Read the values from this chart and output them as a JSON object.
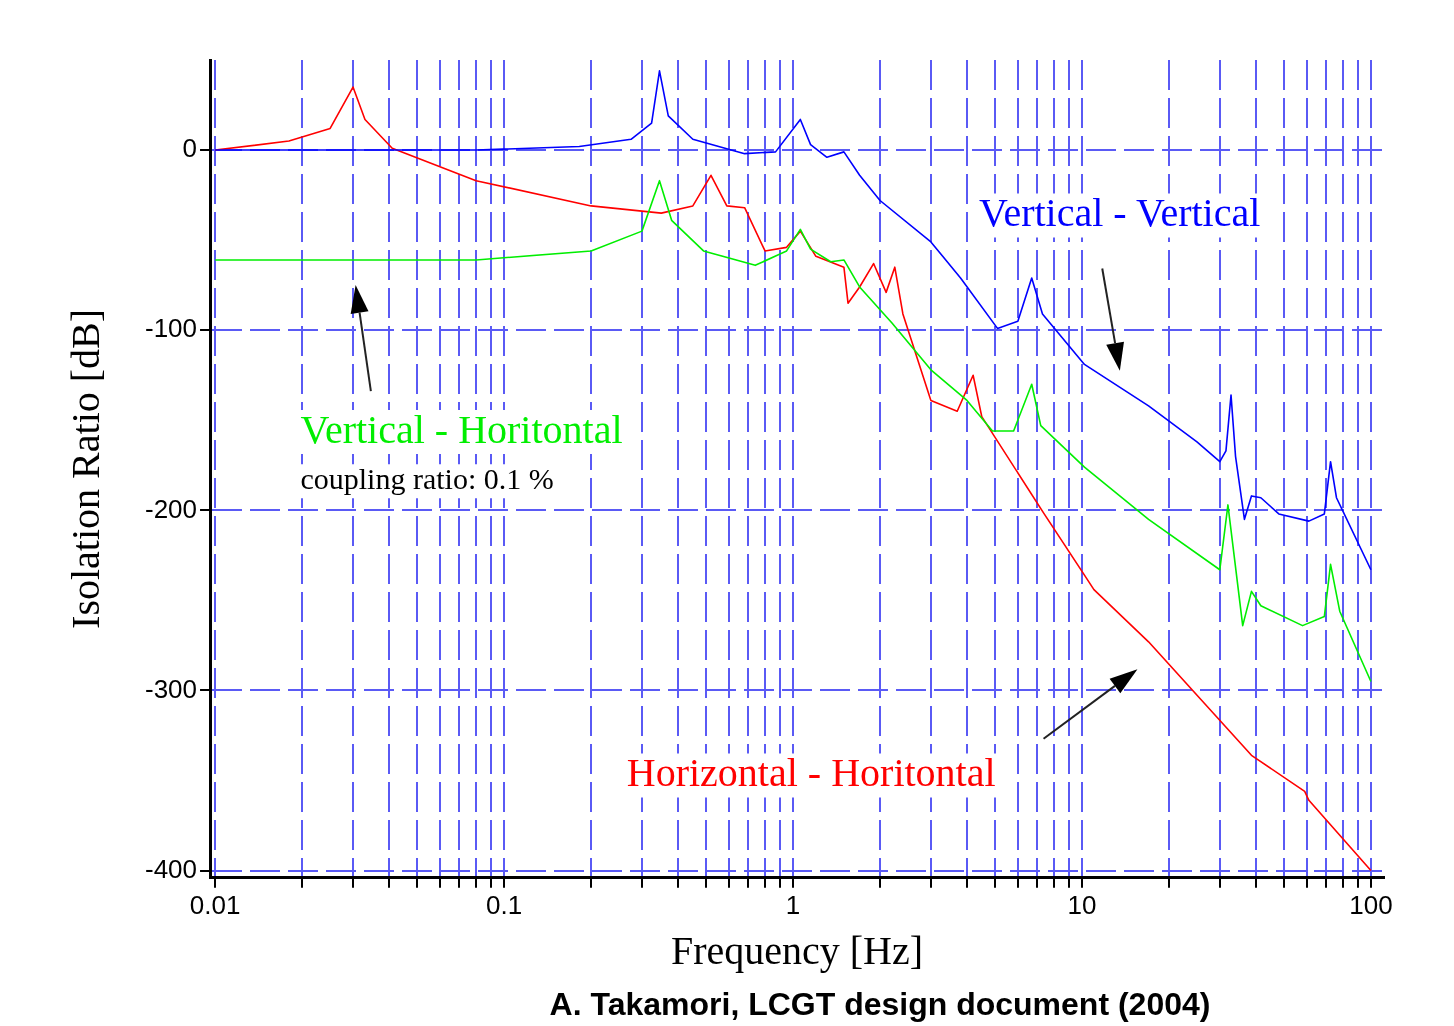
{
  "chart_data": {
    "type": "line",
    "xlabel": "Frequency [Hz]",
    "ylabel": "Isolation Ratio [dB]",
    "log": "x",
    "grid": true,
    "legend": false,
    "marker": "none",
    "line_style": "solid",
    "xlim": [
      0.0096,
      111
    ],
    "ylim": [
      -404,
      50
    ],
    "xticks": [
      0.01,
      {
        "value": 0.02,
        "label": null
      },
      {
        "value": 0.03,
        "label": null
      },
      {
        "value": 0.04,
        "label": null
      },
      {
        "value": 0.05,
        "label": null
      },
      {
        "value": 0.06,
        "label": null
      },
      {
        "value": 0.07,
        "label": null
      },
      {
        "value": 0.08,
        "label": null
      },
      {
        "value": 0.09,
        "label": null
      },
      0.1,
      {
        "value": 0.2,
        "label": null
      },
      {
        "value": 0.3,
        "label": null
      },
      {
        "value": 0.4,
        "label": null
      },
      {
        "value": 0.5,
        "label": null
      },
      {
        "value": 0.6,
        "label": null
      },
      {
        "value": 0.7,
        "label": null
      },
      {
        "value": 0.8,
        "label": null
      },
      {
        "value": 0.9,
        "label": null
      },
      1,
      {
        "value": 2,
        "label": null
      },
      {
        "value": 3,
        "label": null
      },
      {
        "value": 4,
        "label": null
      },
      {
        "value": 5,
        "label": null
      },
      {
        "value": 6,
        "label": null
      },
      {
        "value": 7,
        "label": null
      },
      {
        "value": 8,
        "label": null
      },
      {
        "value": 9,
        "label": null
      },
      10,
      {
        "value": 20,
        "label": null
      },
      {
        "value": 30,
        "label": null
      },
      {
        "value": 40,
        "label": null
      },
      {
        "value": 50,
        "label": null
      },
      {
        "value": 60,
        "label": null
      },
      {
        "value": 70,
        "label": null
      },
      {
        "value": 80,
        "label": null
      },
      {
        "value": 90,
        "label": null
      },
      100
    ],
    "yticks": [
      -400,
      -300,
      -200,
      -100,
      0
    ],
    "series": [
      {
        "name": "Vertical - Vertical",
        "color": "#0000ff",
        "x": [
          0.01,
          0.08,
          0.182,
          0.275,
          0.324,
          0.345,
          0.37,
          0.45,
          0.68,
          0.87,
          1.06,
          1.15,
          1.31,
          1.5,
          1.7,
          2.0,
          3.0,
          3.8,
          5.1,
          6.0,
          6.7,
          7.3,
          10.2,
          17,
          25,
          30,
          31.5,
          32.8,
          34,
          36.5,
          38.6,
          41.6,
          48,
          61,
          69,
          72.5,
          76,
          100
        ],
        "values": [
          0,
          0,
          2,
          6,
          15,
          44,
          19,
          6,
          -2,
          -1,
          17,
          3,
          -4,
          -1,
          -14,
          -28,
          -51,
          -71,
          -99,
          -95,
          -71,
          -91,
          -119,
          -142,
          -162,
          -173,
          -167,
          -136,
          -170,
          -205,
          -192,
          -193,
          -202,
          -206,
          -202,
          -173,
          -193,
          -233
        ]
      },
      {
        "name": "Vertical - Horitontal",
        "color": "#00ee00",
        "x": [
          0.01,
          0.08,
          0.2,
          0.3,
          0.345,
          0.38,
          0.49,
          0.74,
          0.95,
          1.06,
          1.15,
          1.35,
          1.5,
          1.7,
          2.2,
          3.0,
          4.0,
          4.9,
          5.8,
          6.7,
          7.2,
          10.2,
          17,
          30,
          32,
          36,
          38.6,
          41.6,
          58,
          69,
          72.5,
          78,
          100
        ],
        "values": [
          -61,
          -61,
          -56,
          -45,
          -17,
          -39,
          -56,
          -64,
          -56,
          -44,
          -55,
          -62,
          -61,
          -76,
          -96,
          -122,
          -139,
          -156,
          -156,
          -130,
          -153,
          -176,
          -205,
          -233,
          -197,
          -264,
          -245,
          -253,
          -264,
          -259,
          -230,
          -256,
          -295
        ]
      },
      {
        "name": "Horizontal - Horitontal",
        "color": "#ff0000",
        "x": [
          0.01,
          0.018,
          0.025,
          0.03,
          0.033,
          0.041,
          0.08,
          0.2,
          0.35,
          0.45,
          0.52,
          0.59,
          0.68,
          0.8,
          0.95,
          1.06,
          1.2,
          1.5,
          1.55,
          1.7,
          1.9,
          2.1,
          2.25,
          2.4,
          3.0,
          3.7,
          4.2,
          4.5,
          7.4,
          10.2,
          11,
          17,
          38.6,
          59,
          61,
          100
        ],
        "values": [
          0,
          5,
          12,
          35,
          17,
          1,
          -17,
          -31,
          -35,
          -31,
          -14,
          -31,
          -32,
          -56,
          -54,
          -45,
          -59,
          -65,
          -85,
          -76,
          -63,
          -79,
          -65,
          -91,
          -139,
          -145,
          -125,
          -148,
          -202,
          -236,
          -244,
          -273,
          -336,
          -356,
          -361,
          -400
        ]
      }
    ],
    "annotations": [
      "coupling ratio: 0.1 %",
      "A. Takamori, LCGT design document (2004)"
    ]
  }
}
